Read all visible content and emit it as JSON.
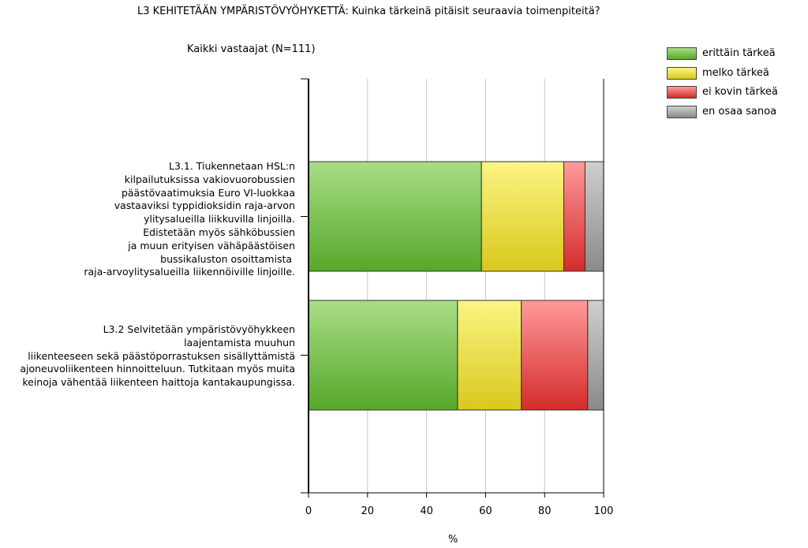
{
  "chart_data": {
    "type": "bar",
    "orientation": "horizontal",
    "stacked": true,
    "title": "L3 KEHITETÄÄN YMPÄRISTÖVYÖHYKETTÄ: Kuinka tärkeinä pitäisit seuraavia toimenpiteitä?",
    "subtitle": "Kaikki vastaajat (N=111)",
    "xlabel": "%",
    "xlim": [
      0,
      100
    ],
    "xticks": [
      "0",
      "20",
      "40",
      "60",
      "80",
      "100"
    ],
    "categories": [
      "L3.1. Tiukennetaan HSL:n\nkilpailutuksissa vakiovuorobussien\npäästövaatimuksia Euro VI-luokkaa\nvastaaviksi typpidioksidin raja-arvon\nylitysalueilla liikkuvilla linjoilla.\nEdistetään myös sähköbussien\nja muun erityisen vähäpäästöisen\nbussikaluston osoittamista \nraja-arvoylitysalueilla liikennöiville linjoille.",
      "L3.2 Selvitetään ympäristövyöhykkeen\nlaajentamista muuhun\nliikenteeseen sekä päästöporrastuksen sisällyttämistä\najoneuvoliikenteen hinnoitteluun. Tutkitaan myös muita\nkeinoja vähentää liikenteen haittoja kantakaupungissa."
    ],
    "series": [
      {
        "name": "erittäin tärkeä",
        "color": "#7cc04a",
        "values": [
          58.6,
          50.5
        ]
      },
      {
        "name": "melko tärkeä",
        "color": "#f0e040",
        "values": [
          27.9,
          21.6
        ]
      },
      {
        "name": "ei kovin tärkeä",
        "color": "#ee4e4e",
        "values": [
          7.2,
          22.5
        ]
      },
      {
        "name": "en osaa sanoa",
        "color": "#a0a0a0",
        "values": [
          6.3,
          5.4
        ]
      }
    ],
    "grid": true,
    "legend_position": "top-right"
  }
}
